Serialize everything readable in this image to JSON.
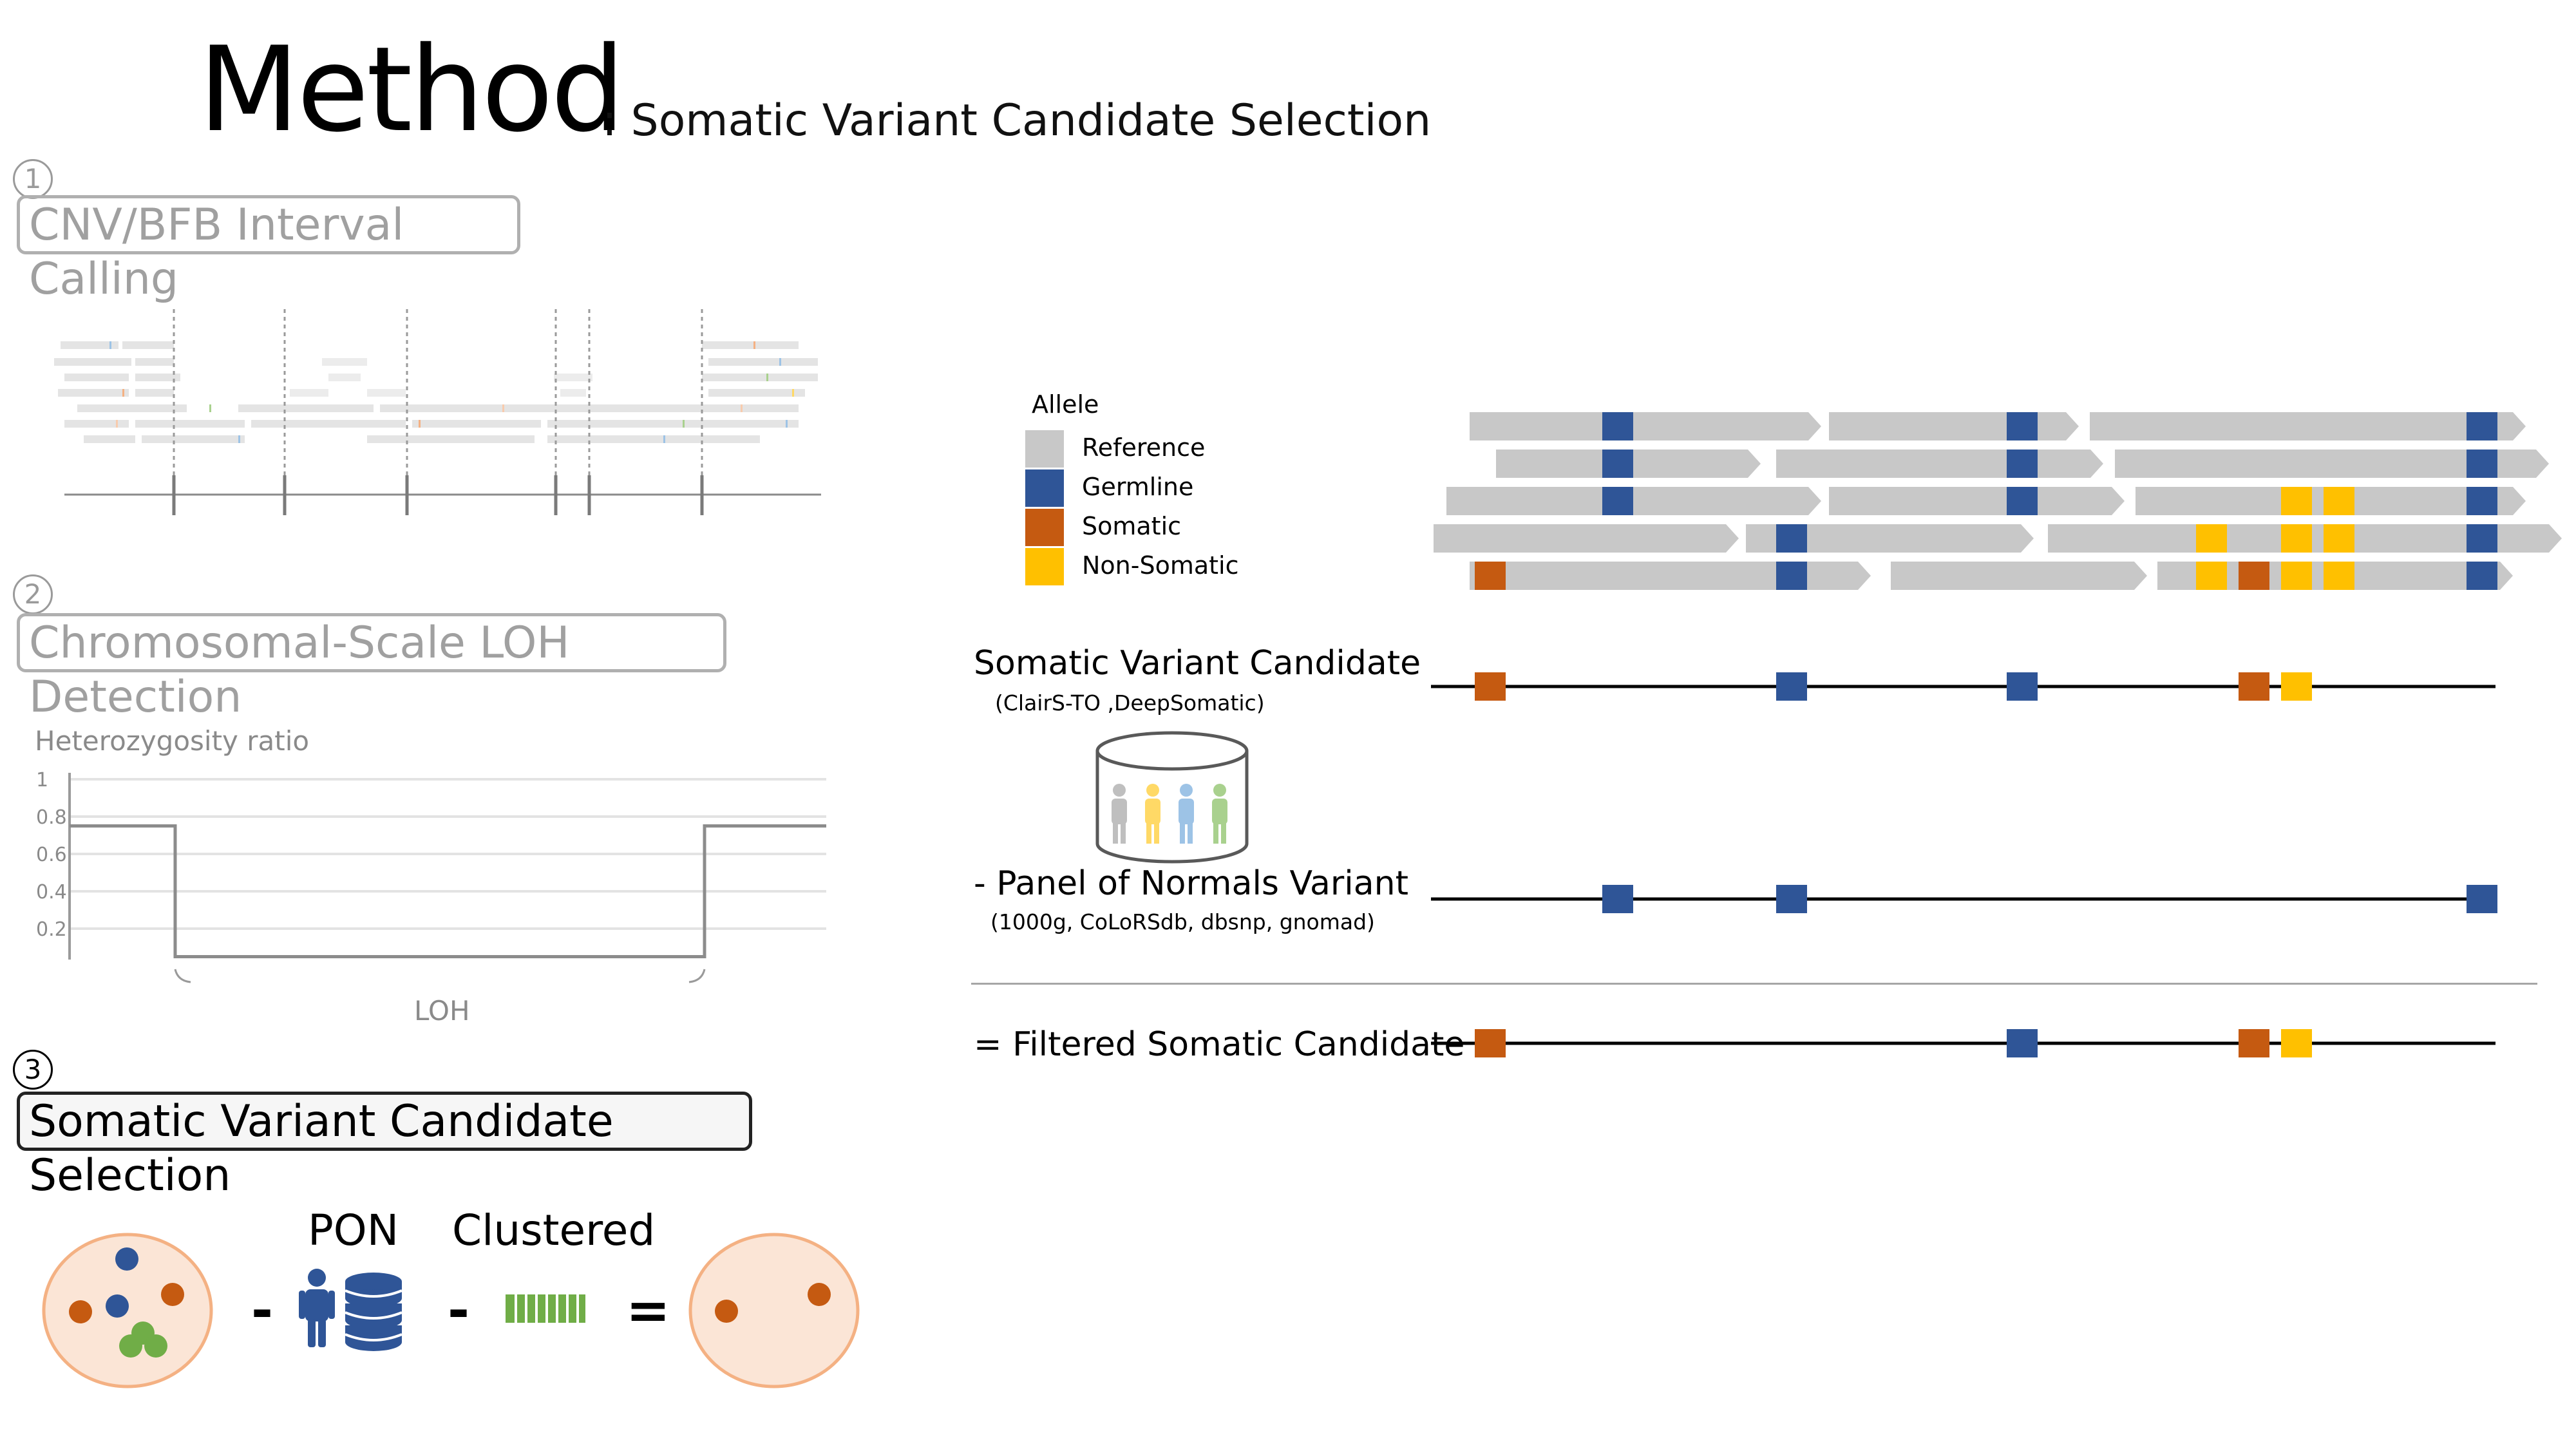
{
  "header": {
    "title": "Method",
    "subtitle": ": Somatic Variant Candidate Selection"
  },
  "steps": [
    {
      "number": "1",
      "label": "CNV/BFB Interval Calling"
    },
    {
      "number": "2",
      "label": "Chromosomal-Scale LOH Detection"
    },
    {
      "number": "3",
      "label": "Somatic Variant Candidate Selection"
    }
  ],
  "loh_plot": {
    "ylabel": "Heterozygosity ratio",
    "yticks": [
      "1",
      "0.8",
      "0.6",
      "0.4",
      "0.2"
    ],
    "region_label": "LOH",
    "outside_level": 0.75,
    "loh_level": 0.05
  },
  "summary": {
    "pon_label": "PON",
    "clustered_label": "Clustered",
    "minus_sign": "-",
    "equals_sign": "="
  },
  "legend": {
    "title": "Allele",
    "items": [
      {
        "label": "Reference",
        "color": "#c8c8c8"
      },
      {
        "label": "Germline",
        "color": "#2f5597"
      },
      {
        "label": "Somatic",
        "color": "#c55a11"
      },
      {
        "label": "Non-Somatic",
        "color": "#ffc000"
      }
    ]
  },
  "rows": {
    "candidate": {
      "label": "Somatic Variant Candidate",
      "sub": "(ClairS-TO ,DeepSomatic)"
    },
    "pon": {
      "label": "- Panel of Normals Variant",
      "sub": "(1000g, CoLoRSdb, dbsnp, gnomad)"
    },
    "filtered": {
      "label": "= Filtered Somatic Candidate"
    }
  },
  "colors": {
    "reference": "#c8c8c8",
    "germline": "#2f5597",
    "somatic": "#c55a11",
    "non_somatic": "#ffc000",
    "circle_fill": "#fbe5d6",
    "circle_stroke": "#f4b183",
    "cluster_green": "#70ad47"
  }
}
